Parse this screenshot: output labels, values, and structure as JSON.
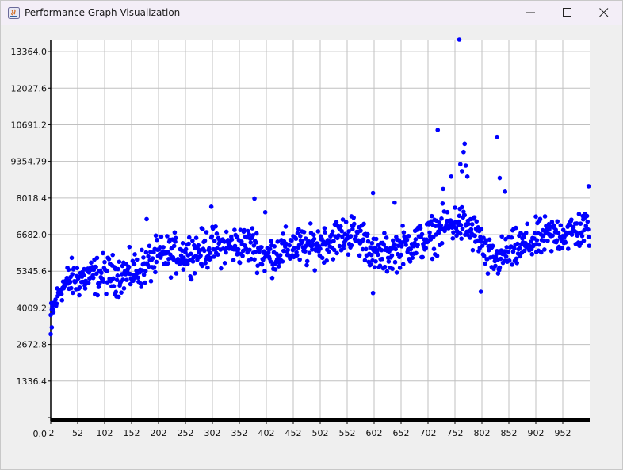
{
  "window": {
    "title": "Performance Graph Visualization",
    "controls": {
      "minimize": "minimize",
      "maximize": "maximize",
      "close": "close"
    }
  },
  "chart_data": {
    "type": "scatter",
    "title": "",
    "xlabel": "",
    "ylabel": "",
    "grid": true,
    "point_color": "#0000ff",
    "xlim": [
      2,
      1002
    ],
    "ylim": [
      0,
      13800
    ],
    "y_ticks": [
      "0.0",
      "1336.4",
      "2672.8",
      "4009.2",
      "5345.6",
      "6682.0",
      "8018.4",
      "9354.79",
      "10691.2",
      "12027.6",
      "13364.0"
    ],
    "x_ticks": [
      "2",
      "52",
      "102",
      "152",
      "202",
      "252",
      "302",
      "352",
      "402",
      "452",
      "502",
      "552",
      "602",
      "652",
      "702",
      "752",
      "802",
      "852",
      "902",
      "952"
    ],
    "series_trend": [
      [
        2,
        3700
      ],
      [
        10,
        4150
      ],
      [
        20,
        4700
      ],
      [
        40,
        5050
      ],
      [
        60,
        5100
      ],
      [
        80,
        5150
      ],
      [
        100,
        5250
      ],
      [
        120,
        5200
      ],
      [
        140,
        5250
      ],
      [
        160,
        5350
      ],
      [
        180,
        5550
      ],
      [
        200,
        5850
      ],
      [
        220,
        5950
      ],
      [
        250,
        6000
      ],
      [
        280,
        6100
      ],
      [
        300,
        6250
      ],
      [
        320,
        6250
      ],
      [
        350,
        6300
      ],
      [
        380,
        6300
      ],
      [
        400,
        5850
      ],
      [
        420,
        6000
      ],
      [
        450,
        6250
      ],
      [
        480,
        6200
      ],
      [
        500,
        6350
      ],
      [
        530,
        6550
      ],
      [
        560,
        6700
      ],
      [
        590,
        6450
      ],
      [
        600,
        5850
      ],
      [
        630,
        6000
      ],
      [
        660,
        6300
      ],
      [
        700,
        6500
      ],
      [
        720,
        6800
      ],
      [
        740,
        7050
      ],
      [
        760,
        7100
      ],
      [
        780,
        6850
      ],
      [
        800,
        6500
      ],
      [
        810,
        5800
      ],
      [
        830,
        5750
      ],
      [
        850,
        6000
      ],
      [
        870,
        6200
      ],
      [
        900,
        6450
      ],
      [
        930,
        6650
      ],
      [
        960,
        6750
      ],
      [
        1000,
        6900
      ]
    ],
    "outliers": [
      [
        2,
        3050
      ],
      [
        4,
        3300
      ],
      [
        180,
        7250
      ],
      [
        300,
        7700
      ],
      [
        380,
        8000
      ],
      [
        400,
        7500
      ],
      [
        560,
        7350
      ],
      [
        600,
        4550
      ],
      [
        600,
        8200
      ],
      [
        640,
        7850
      ],
      [
        720,
        10500
      ],
      [
        730,
        8350
      ],
      [
        745,
        8800
      ],
      [
        760,
        13800
      ],
      [
        762,
        9250
      ],
      [
        765,
        9000
      ],
      [
        768,
        9700
      ],
      [
        770,
        10000
      ],
      [
        772,
        9200
      ],
      [
        775,
        8800
      ],
      [
        800,
        4600
      ],
      [
        830,
        10250
      ],
      [
        835,
        8750
      ],
      [
        845,
        8250
      ],
      [
        1000,
        8450
      ]
    ]
  }
}
